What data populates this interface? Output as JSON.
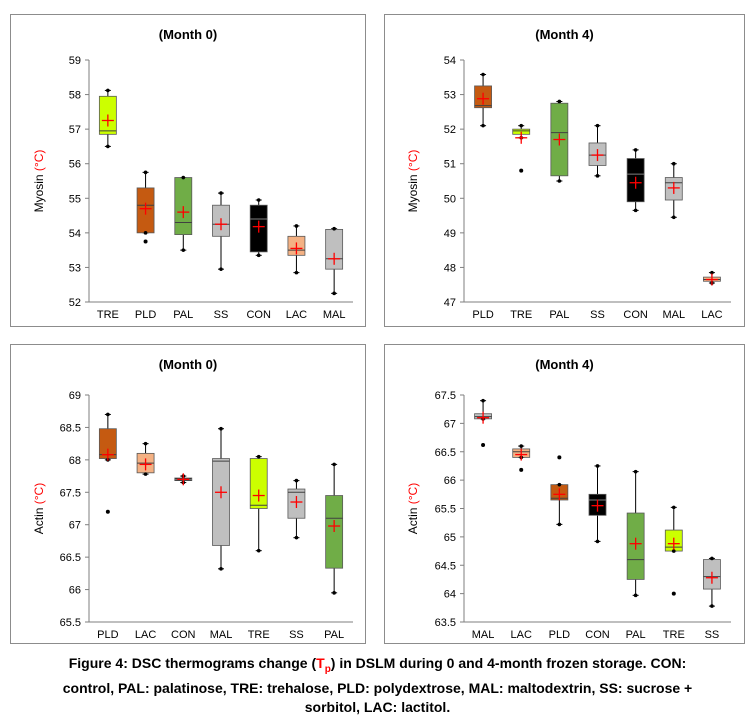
{
  "chart_data": [
    {
      "type": "box",
      "title": "(Month 0)",
      "ylabel_main": "Myosin",
      "ylabel_unit": "(°C)",
      "ylim": [
        52,
        59
      ],
      "yticks": [
        52,
        53,
        54,
        55,
        56,
        57,
        58,
        59
      ],
      "categories": [
        "TRE",
        "PLD",
        "PAL",
        "SS",
        "CON",
        "LAC",
        "MAL"
      ],
      "boxes": [
        {
          "min": 56.5,
          "q1": 56.85,
          "median": 56.95,
          "q3": 57.95,
          "max": 58.12,
          "mean": 57.25,
          "outliers": [],
          "color": "#ccff00"
        },
        {
          "min": 54.0,
          "q1": 54.0,
          "median": 54.8,
          "q3": 55.3,
          "max": 55.75,
          "mean": 54.7,
          "outliers": [
            53.75
          ],
          "color": "#c55a11"
        },
        {
          "min": 53.5,
          "q1": 53.95,
          "median": 54.3,
          "q3": 55.6,
          "max": 55.6,
          "mean": 54.6,
          "outliers": [],
          "color": "#70ad47"
        },
        {
          "min": 52.95,
          "q1": 53.9,
          "median": 54.25,
          "q3": 54.8,
          "max": 55.15,
          "mean": 54.25,
          "outliers": [],
          "color": "#bfbfbf"
        },
        {
          "min": 53.35,
          "q1": 53.45,
          "median": 54.4,
          "q3": 54.8,
          "max": 54.95,
          "mean": 54.18,
          "outliers": [],
          "color": "#000000"
        },
        {
          "min": 52.85,
          "q1": 53.35,
          "median": 53.5,
          "q3": 53.9,
          "max": 54.2,
          "mean": 53.55,
          "outliers": [],
          "color": "#f4b183"
        },
        {
          "min": 52.25,
          "q1": 52.95,
          "median": 53.25,
          "q3": 54.1,
          "max": 54.12,
          "mean": 53.25,
          "outliers": [],
          "color": "#bfbfbf"
        }
      ]
    },
    {
      "type": "box",
      "title": "(Month 4)",
      "ylabel_main": "Myosin",
      "ylabel_unit": "(°C)",
      "ylim": [
        47,
        54
      ],
      "yticks": [
        47,
        48,
        49,
        50,
        51,
        52,
        53,
        54
      ],
      "categories": [
        "PLD",
        "TRE",
        "PAL",
        "SS",
        "CON",
        "MAL",
        "LAC"
      ],
      "boxes": [
        {
          "min": 52.1,
          "q1": 52.62,
          "median": 52.68,
          "q3": 53.25,
          "max": 53.58,
          "mean": 52.88,
          "outliers": [],
          "color": "#c55a11"
        },
        {
          "min": 51.75,
          "q1": 51.85,
          "median": 51.95,
          "q3": 52.0,
          "max": 52.1,
          "mean": 51.75,
          "outliers": [
            50.8
          ],
          "color": "#ccff00"
        },
        {
          "min": 50.5,
          "q1": 50.65,
          "median": 51.9,
          "q3": 52.75,
          "max": 52.8,
          "mean": 51.7,
          "outliers": [],
          "color": "#70ad47"
        },
        {
          "min": 50.65,
          "q1": 50.95,
          "median": 51.25,
          "q3": 51.6,
          "max": 52.1,
          "mean": 51.25,
          "outliers": [],
          "color": "#bfbfbf"
        },
        {
          "min": 49.65,
          "q1": 49.9,
          "median": 50.7,
          "q3": 51.15,
          "max": 51.4,
          "mean": 50.45,
          "outliers": [],
          "color": "#000000"
        },
        {
          "min": 49.45,
          "q1": 49.95,
          "median": 50.45,
          "q3": 50.6,
          "max": 51.0,
          "mean": 50.3,
          "outliers": [],
          "color": "#bfbfbf"
        },
        {
          "min": 47.55,
          "q1": 47.6,
          "median": 47.65,
          "q3": 47.72,
          "max": 47.85,
          "mean": 47.65,
          "outliers": [],
          "color": "#f4b183"
        }
      ]
    },
    {
      "type": "box",
      "title": "(Month 0)",
      "ylabel_main": "Actin",
      "ylabel_unit": "(°C)",
      "ylim": [
        65.5,
        69
      ],
      "yticks": [
        65.5,
        66,
        66.5,
        67,
        67.5,
        68,
        68.5,
        69
      ],
      "categories": [
        "PLD",
        "LAC",
        "CON",
        "MAL",
        "TRE",
        "SS",
        "PAL"
      ],
      "boxes": [
        {
          "min": 68.0,
          "q1": 68.02,
          "median": 68.08,
          "q3": 68.48,
          "max": 68.7,
          "mean": 68.08,
          "outliers": [
            67.2
          ],
          "color": "#c55a11"
        },
        {
          "min": 67.78,
          "q1": 67.8,
          "median": 67.95,
          "q3": 68.1,
          "max": 68.25,
          "mean": 67.93,
          "outliers": [],
          "color": "#f4b183"
        },
        {
          "min": 67.65,
          "q1": 67.68,
          "median": 67.7,
          "q3": 67.72,
          "max": 67.75,
          "mean": 67.7,
          "outliers": [],
          "color": "#000000"
        },
        {
          "min": 66.32,
          "q1": 66.68,
          "median": 67.98,
          "q3": 68.02,
          "max": 68.48,
          "mean": 67.5,
          "outliers": [],
          "color": "#bfbfbf"
        },
        {
          "min": 66.6,
          "q1": 67.25,
          "median": 67.3,
          "q3": 68.02,
          "max": 68.05,
          "mean": 67.45,
          "outliers": [],
          "color": "#ccff00"
        },
        {
          "min": 66.8,
          "q1": 67.1,
          "median": 67.5,
          "q3": 67.55,
          "max": 67.68,
          "mean": 67.35,
          "outliers": [],
          "color": "#bfbfbf"
        },
        {
          "min": 65.95,
          "q1": 66.33,
          "median": 67.1,
          "q3": 67.45,
          "max": 67.93,
          "mean": 66.98,
          "outliers": [],
          "color": "#70ad47"
        }
      ]
    },
    {
      "type": "box",
      "title": "(Month 4)",
      "ylabel_main": "Actin",
      "ylabel_unit": "(°C)",
      "ylim": [
        63.5,
        67.5
      ],
      "yticks": [
        63.5,
        64,
        64.5,
        65,
        65.5,
        66,
        66.5,
        67,
        67.5
      ],
      "categories": [
        "MAL",
        "LAC",
        "PLD",
        "CON",
        "PAL",
        "TRE",
        "SS"
      ],
      "boxes": [
        {
          "min": 67.08,
          "q1": 67.08,
          "median": 67.12,
          "q3": 67.17,
          "max": 67.4,
          "mean": 67.1,
          "outliers": [
            66.62
          ],
          "color": "#bfbfbf"
        },
        {
          "min": 66.4,
          "q1": 66.4,
          "median": 66.5,
          "q3": 66.55,
          "max": 66.6,
          "mean": 66.45,
          "outliers": [
            66.18
          ],
          "color": "#f4b183"
        },
        {
          "min": 65.22,
          "q1": 65.65,
          "median": 65.68,
          "q3": 65.92,
          "max": 65.92,
          "mean": 65.75,
          "outliers": [
            66.4
          ],
          "color": "#c55a11"
        },
        {
          "min": 64.92,
          "q1": 65.38,
          "median": 65.65,
          "q3": 65.75,
          "max": 66.25,
          "mean": 65.55,
          "outliers": [],
          "color": "#000000"
        },
        {
          "min": 63.97,
          "q1": 64.25,
          "median": 64.6,
          "q3": 65.42,
          "max": 66.15,
          "mean": 64.88,
          "outliers": [],
          "color": "#70ad47"
        },
        {
          "min": 64.75,
          "q1": 64.75,
          "median": 64.82,
          "q3": 65.12,
          "max": 65.52,
          "mean": 64.88,
          "outliers": [
            64.0
          ],
          "color": "#ccff00"
        },
        {
          "min": 63.78,
          "q1": 64.08,
          "median": 64.3,
          "q3": 64.6,
          "max": 64.62,
          "mean": 64.28,
          "outliers": [],
          "color": "#bfbfbf"
        }
      ]
    }
  ],
  "caption": {
    "line1_before": "Figure 4: DSC thermograms change (",
    "tp_T": "T",
    "tp_sub": "p",
    "line1_after": ") in DSLM during 0 and 4-month frozen storage.  CON:",
    "line2": "control, PAL: palatinose, TRE: trehalose, PLD: polydextrose, MAL: maltodextrin, SS: sucrose +",
    "line3": "sorbitol, LAC: lactitol."
  },
  "colors": {
    "mean_marker": "#ff0000",
    "unit_label": "#ff0000",
    "whisker": "#000000",
    "frame": "#8c8c8c"
  }
}
